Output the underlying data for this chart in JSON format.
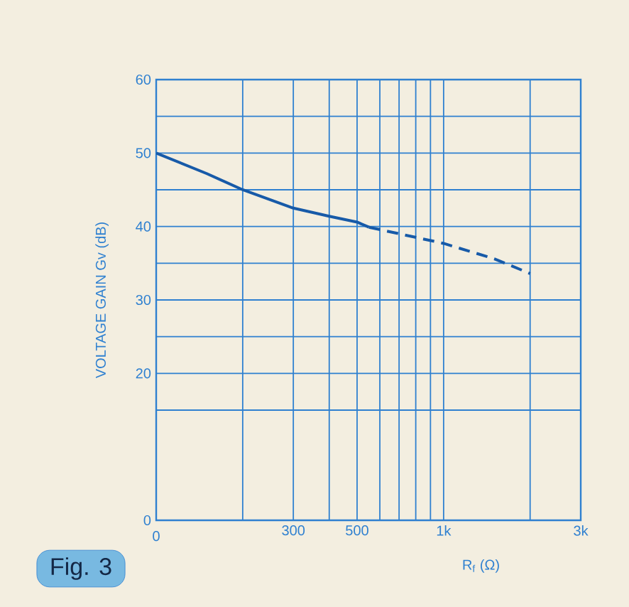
{
  "chart_data": {
    "type": "line",
    "xlabel": "R$_{f}$   (Ω)",
    "ylabel": "VOLTAGE GAIN   Gv   (dB)",
    "annotations": [
      "Fig. 3",
      "0"
    ],
    "log": "x",
    "grid": true,
    "marker": "none",
    "xlim": [
      100,
      3000
    ],
    "ylim": [
      0,
      60
    ],
    "xticks": [
      {
        "value": 100,
        "label": null
      },
      {
        "value": 200,
        "label": null
      },
      300,
      {
        "value": 400,
        "label": null
      },
      500,
      {
        "value": 600,
        "label": null
      },
      {
        "value": 700,
        "label": null
      },
      {
        "value": 800,
        "label": null
      },
      {
        "value": 900,
        "label": null
      },
      {
        "value": 1000,
        "label": "1k"
      },
      {
        "value": 2000,
        "label": null
      },
      {
        "value": 3000,
        "label": "3k"
      }
    ],
    "yticks": [
      0,
      {
        "value": 15,
        "label": null
      },
      20,
      {
        "value": 25,
        "label": null
      },
      30,
      {
        "value": 35,
        "label": null
      },
      40,
      {
        "value": 45,
        "label": null
      },
      50,
      {
        "value": 55,
        "label": null
      },
      60
    ],
    "series": [
      {
        "color": "#175aa8",
        "line_style": "solid",
        "x": [
          100,
          150,
          200,
          300,
          400,
          500,
          550
        ],
        "values": [
          50,
          47.2,
          45,
          42.5,
          41.4,
          40.6,
          39.9
        ]
      },
      {
        "color": "#175aa8",
        "line_style": "dashed",
        "x": [
          550,
          1000,
          1500,
          2000
        ],
        "values": [
          39.9,
          37.7,
          35.6,
          33.6
        ]
      }
    ]
  }
}
